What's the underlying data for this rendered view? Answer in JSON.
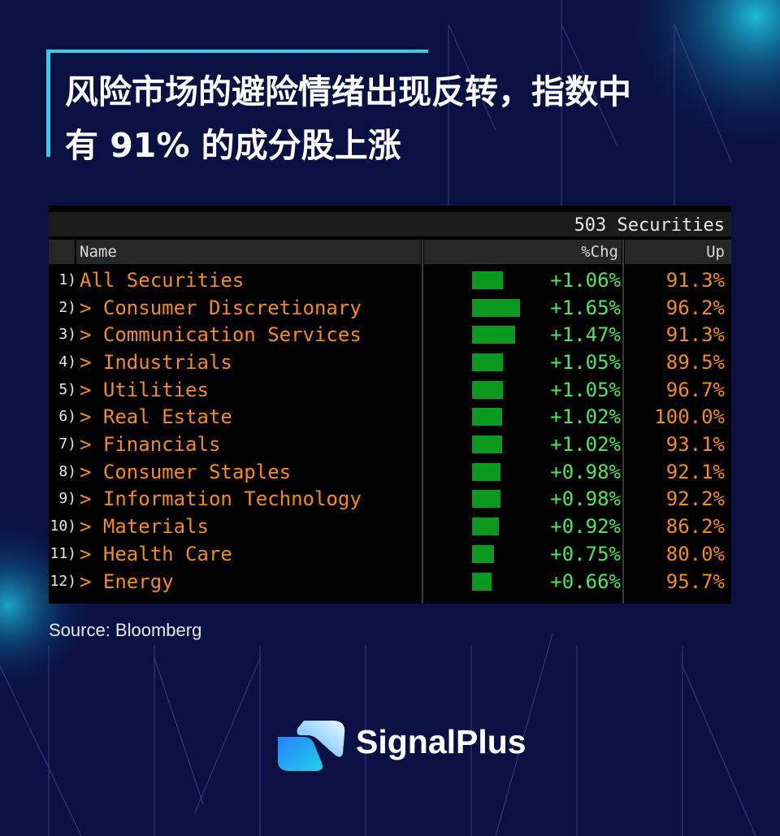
{
  "title": {
    "line1": "风险市场的避险情绪出现反转，指数中",
    "line2": "有 91% 的成分股上涨"
  },
  "terminal": {
    "count_label": "503 Securities",
    "columns": {
      "name": "Name",
      "chg": "%Chg",
      "up": "Up"
    },
    "rows": [
      {
        "num": "1)",
        "name": "All Securities",
        "chg": "+1.06%",
        "up": "91.3%",
        "chg_value": 1.06
      },
      {
        "num": "2)",
        "name": "> Consumer Discretionary",
        "chg": "+1.65%",
        "up": "96.2%",
        "chg_value": 1.65
      },
      {
        "num": "3)",
        "name": "> Communication Services",
        "chg": "+1.47%",
        "up": "91.3%",
        "chg_value": 1.47
      },
      {
        "num": "4)",
        "name": "> Industrials",
        "chg": "+1.05%",
        "up": "89.5%",
        "chg_value": 1.05
      },
      {
        "num": "5)",
        "name": "> Utilities",
        "chg": "+1.05%",
        "up": "96.7%",
        "chg_value": 1.05
      },
      {
        "num": "6)",
        "name": "> Real Estate",
        "chg": "+1.02%",
        "up": "100.0%",
        "chg_value": 1.02
      },
      {
        "num": "7)",
        "name": "> Financials",
        "chg": "+1.02%",
        "up": "93.1%",
        "chg_value": 1.02
      },
      {
        "num": "8)",
        "name": "> Consumer Staples",
        "chg": "+0.98%",
        "up": "92.1%",
        "chg_value": 0.98
      },
      {
        "num": "9)",
        "name": "> Information Technology",
        "chg": "+0.98%",
        "up": "92.2%",
        "chg_value": 0.98
      },
      {
        "num": "10)",
        "name": "> Materials",
        "chg": "+0.92%",
        "up": "86.2%",
        "chg_value": 0.92
      },
      {
        "num": "11)",
        "name": "> Health Care",
        "chg": "+0.75%",
        "up": "80.0%",
        "chg_value": 0.75
      },
      {
        "num": "12)",
        "name": "> Energy",
        "chg": "+0.66%",
        "up": "95.7%",
        "chg_value": 0.66
      }
    ]
  },
  "source": "Source: Bloomberg",
  "brand": {
    "name": "SignalPlus",
    "logo_icon": "signalplus-logo-icon"
  },
  "colors": {
    "background": "#0a1142",
    "accent": "#29d3e6",
    "name_text": "#f28c1a",
    "chg_text": "#4ee85c",
    "bar": "#0a9a1f"
  }
}
